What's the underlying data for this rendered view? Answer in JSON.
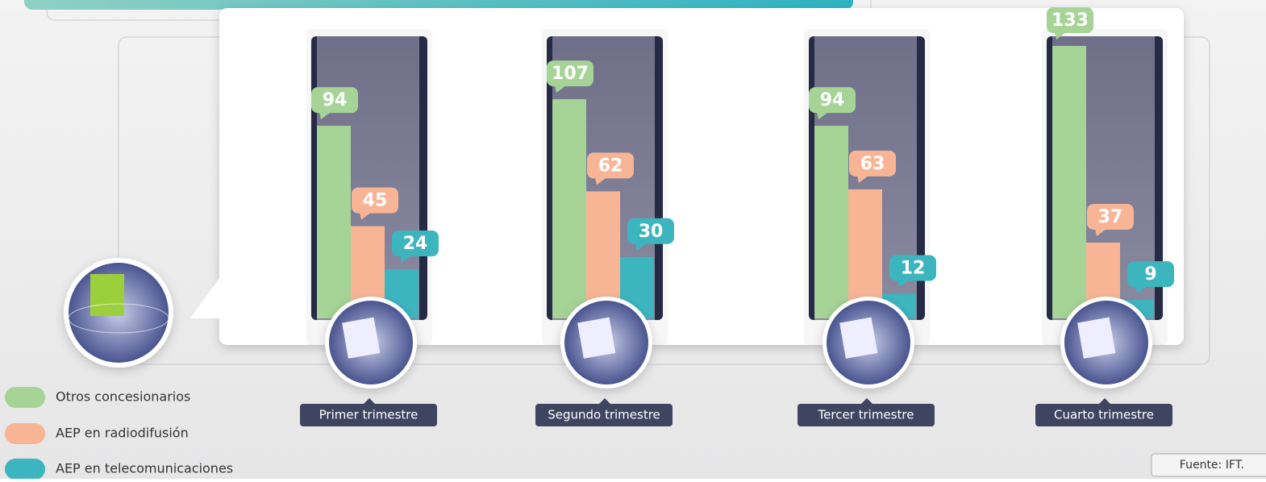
{
  "chart_data": {
    "type": "bar",
    "categories": [
      "Primer trimestre",
      "Segundo trimestre",
      "Tercer trimestre",
      "Cuarto trimestre"
    ],
    "series": [
      {
        "name": "Otros concesionarios",
        "color": "#a6d396",
        "values": [
          94,
          107,
          94,
          133
        ]
      },
      {
        "name": "AEP en radiodifusión",
        "color": "#f7b596",
        "values": [
          45,
          62,
          63,
          37
        ]
      },
      {
        "name": "AEP en telecomunicaciones",
        "color": "#3db5bf",
        "values": [
          24,
          30,
          12,
          9
        ]
      }
    ],
    "source": "Fuente: IFT."
  }
}
